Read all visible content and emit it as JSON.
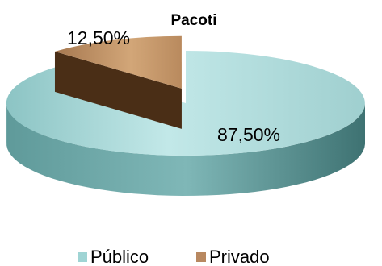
{
  "chart_data": {
    "type": "pie",
    "title": "Pacoti",
    "categories": [
      "Público",
      "Privado"
    ],
    "values": [
      87.5,
      12.5
    ],
    "data_labels": [
      "87,50%",
      "12,50%"
    ],
    "colors": [
      "#a8d8d8",
      "#b88860"
    ],
    "exploded": "Privado",
    "style": "3d",
    "legend": "bottom"
  }
}
